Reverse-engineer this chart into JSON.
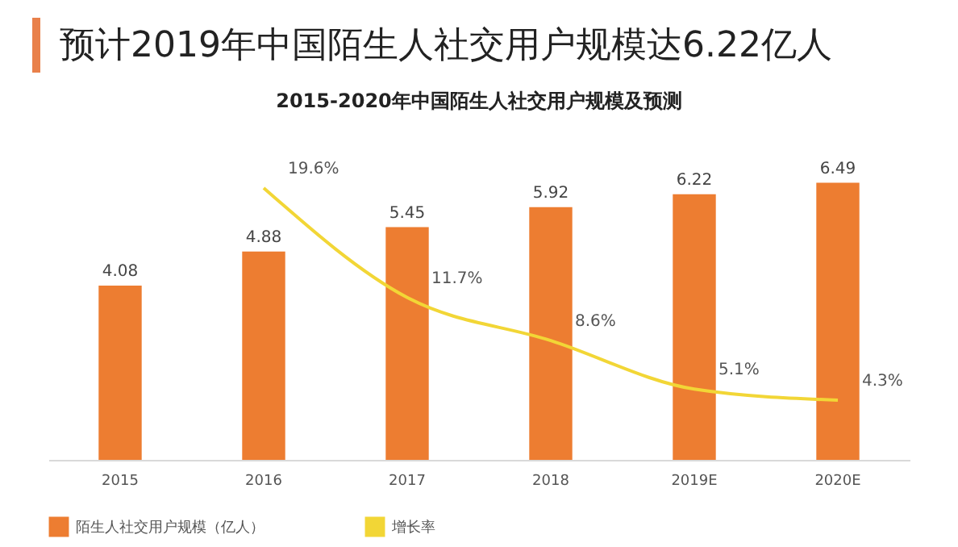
{
  "chart_data": {
    "type": "bar",
    "title": "预计2019年中国陌生人社交用户规模达6.22亿人",
    "subtitle": "2015-2020年中国陌生人社交用户规模及预测",
    "categories": [
      "2015",
      "2016",
      "2017",
      "2018",
      "2019E",
      "2020E"
    ],
    "series": [
      {
        "name": "陌生人社交用户规模（亿人）",
        "color": "#ed7d31",
        "values": [
          4.08,
          4.88,
          5.45,
          5.92,
          6.22,
          6.49
        ]
      },
      {
        "name": "增长率",
        "type": "line",
        "axis": "y2",
        "color": "#f2d636",
        "values": [
          null,
          19.6,
          11.7,
          8.6,
          5.1,
          4.3
        ],
        "value_labels": [
          null,
          "19.6%",
          "11.7%",
          "8.6%",
          "5.1%",
          "4.3%"
        ]
      }
    ],
    "data_labels": true,
    "tick_labels": "x",
    "legend": "bottom",
    "grid": false,
    "marker": "none"
  }
}
